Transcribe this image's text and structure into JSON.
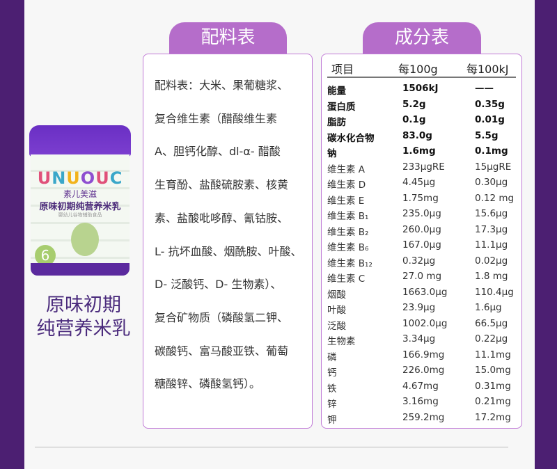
{
  "colors": {
    "background_strip": "#4c1f72",
    "tab": "#b56dca",
    "border": "#c07ad6",
    "title_text": "#4a2a7c"
  },
  "product": {
    "can_text": {
      "logo": "UNUOUC",
      "brand": "素儿美滋",
      "name": "原味初期纯营养米乳",
      "subtitle": "婴幼儿谷物辅助食品",
      "stage": "6"
    },
    "title_line1": "原味初期",
    "title_line2": "纯营养米乳"
  },
  "ingredients": {
    "tab_label": "配料表",
    "lines": [
      "配料表：大米、果葡糖浆、",
      "复合维生素（醋酸维生素",
      "A、胆钙化醇、dl-α- 醋酸",
      "生育酚、盐酸硫胺素、核黄",
      "素、盐酸吡哆醇、氰钴胺、",
      "L- 抗坏血酸、烟酰胺、叶酸、",
      "D- 泛酸钙、D- 生物素）、",
      "复合矿物质（磷酸氢二钾、",
      "碳酸钙、富马酸亚铁、葡萄",
      "糖酸锌、磷酸氢钙）。"
    ]
  },
  "nutrition": {
    "tab_label": "成分表",
    "headers": [
      "项目",
      "每100g",
      "每100kJ"
    ],
    "rows": [
      {
        "name": "能量",
        "per100g": "1506kJ",
        "per100kj": "——",
        "bold": true
      },
      {
        "name": "蛋白质",
        "per100g": "5.2g",
        "per100kj": "0.35g",
        "bold": true
      },
      {
        "name": "脂肪",
        "per100g": "0.1g",
        "per100kj": "0.01g",
        "bold": true
      },
      {
        "name": "碳水化合物",
        "per100g": "83.0g",
        "per100kj": "5.5g",
        "bold": true
      },
      {
        "name": "钠",
        "per100g": "1.6mg",
        "per100kj": "0.1mg",
        "bold": true
      },
      {
        "name": "维生素 A",
        "per100g": "233μgRE",
        "per100kj": "15μgRE"
      },
      {
        "name": "维生素 D",
        "per100g": "4.45μg",
        "per100kj": "0.30μg"
      },
      {
        "name": "维生素 E",
        "per100g": "1.75mg",
        "per100kj": "0.12 mg"
      },
      {
        "name": "维生素 B₁",
        "per100g": "235.0μg",
        "per100kj": "15.6μg"
      },
      {
        "name": "维生素 B₂",
        "per100g": "260.0μg",
        "per100kj": "17.3μg"
      },
      {
        "name": "维生素 B₆",
        "per100g": "167.0μg",
        "per100kj": "11.1μg"
      },
      {
        "name": "维生素 B₁₂",
        "per100g": "0.32μg",
        "per100kj": "0.02μg"
      },
      {
        "name": "维生素 C",
        "per100g": "27.0 mg",
        "per100kj": "1.8 mg"
      },
      {
        "name": "烟酸",
        "per100g": "1663.0μg",
        "per100kj": "110.4μg"
      },
      {
        "name": "叶酸",
        "per100g": "23.9μg",
        "per100kj": "1.6μg"
      },
      {
        "name": "泛酸",
        "per100g": "1002.0μg",
        "per100kj": "66.5μg"
      },
      {
        "name": "生物素",
        "per100g": "3.34μg",
        "per100kj": "0.22μg"
      },
      {
        "name": "磷",
        "per100g": "166.9mg",
        "per100kj": "11.1mg"
      },
      {
        "name": "钙",
        "per100g": "226.0mg",
        "per100kj": "15.0mg"
      },
      {
        "name": "铁",
        "per100g": "4.67mg",
        "per100kj": "0.31mg"
      },
      {
        "name": "锌",
        "per100g": "3.16mg",
        "per100kj": "0.21mg"
      },
      {
        "name": "钾",
        "per100g": "259.2mg",
        "per100kj": "17.2mg"
      }
    ]
  }
}
